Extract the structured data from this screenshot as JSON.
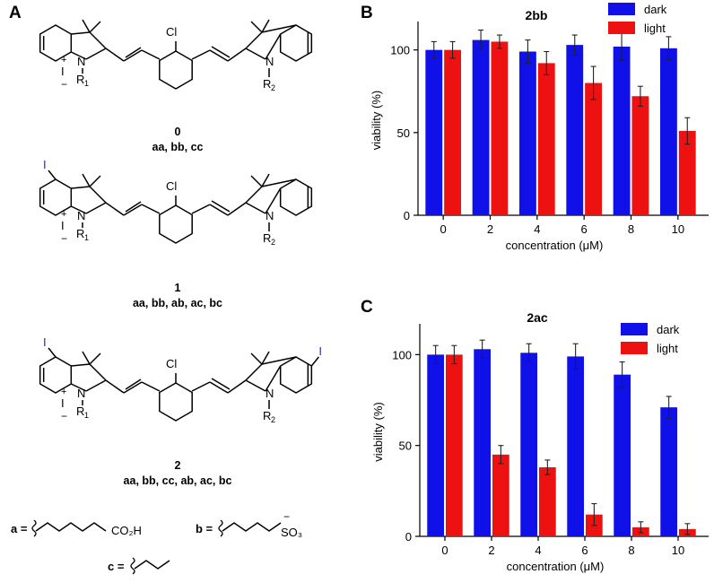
{
  "panels": {
    "a": "A",
    "b": "B",
    "c": "C"
  },
  "scheme": {
    "atoms": {
      "cl": "Cl",
      "iodo": "I",
      "n": "N",
      "r1": "R",
      "r1_sub": "1",
      "r2": "R",
      "r2_sub": "2",
      "plus": "+",
      "iodide": "I",
      "minus": "−"
    },
    "compounds": [
      {
        "id": "0",
        "variants": "aa, bb, cc"
      },
      {
        "id": "1",
        "variants": "aa, bb, ab, ac, bc"
      },
      {
        "id": "2",
        "variants": "aa, bb, cc, ab, ac, bc"
      }
    ],
    "substituents": {
      "a_label": "a =",
      "a_group": "CO₂H",
      "b_label": "b =",
      "b_group": "SO₃",
      "b_charge": "−",
      "c_label": "c ="
    }
  },
  "colors": {
    "dark": "#1010e8",
    "light": "#ee1111",
    "iodine": "#2222dd"
  },
  "chart_data": [
    {
      "type": "bar",
      "title": "2bb",
      "xlabel": "concentration (μM)",
      "ylabel": "viability (%)",
      "categories": [
        "0",
        "2",
        "4",
        "6",
        "8",
        "10"
      ],
      "ylim": [
        0,
        115
      ],
      "yticks": [
        0,
        50,
        100
      ],
      "legend": "top-right",
      "series": [
        {
          "name": "dark",
          "values": [
            100,
            106,
            99,
            103,
            102,
            101
          ],
          "errors": [
            5,
            6,
            7,
            6,
            8,
            7
          ]
        },
        {
          "name": "light",
          "values": [
            100,
            105,
            92,
            80,
            72,
            51
          ],
          "errors": [
            5,
            4,
            7,
            10,
            6,
            8
          ]
        }
      ]
    },
    {
      "type": "bar",
      "title": "2ac",
      "xlabel": "concentration (μM)",
      "ylabel": "viability (%)",
      "categories": [
        "0",
        "2",
        "4",
        "6",
        "8",
        "10"
      ],
      "ylim": [
        0,
        115
      ],
      "yticks": [
        0,
        50,
        100
      ],
      "legend": "top-right",
      "series": [
        {
          "name": "dark",
          "values": [
            100,
            103,
            101,
            99,
            89,
            71
          ],
          "errors": [
            5,
            5,
            5,
            7,
            7,
            6
          ]
        },
        {
          "name": "light",
          "values": [
            100,
            45,
            38,
            12,
            5,
            4
          ],
          "errors": [
            5,
            5,
            4,
            6,
            3,
            3
          ]
        }
      ]
    }
  ]
}
